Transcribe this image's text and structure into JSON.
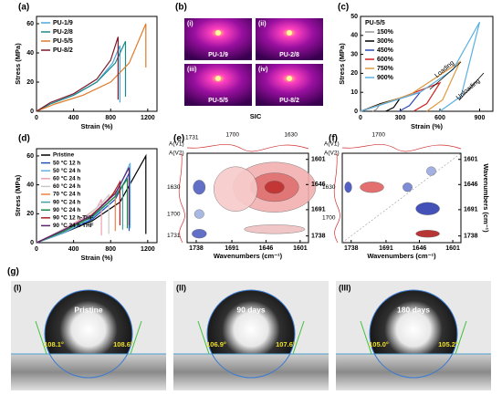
{
  "chart_data": [
    {
      "type": "line",
      "label": "(a)",
      "xlabel": "Strain (%)",
      "ylabel": "Stress (MPa)",
      "xlim": [
        0,
        1300
      ],
      "ylim": [
        0,
        65
      ],
      "xticks": [
        0,
        400,
        800,
        1200
      ],
      "yticks": [
        0,
        20,
        40,
        60
      ],
      "legend": "upper left",
      "series": [
        {
          "name": "PU-1/9",
          "color": "#4aa8e0",
          "x": [
            0,
            150,
            400,
            650,
            820,
            900,
            900
          ],
          "values": [
            0,
            5,
            11,
            20,
            33,
            45,
            6
          ]
        },
        {
          "name": "PU-2/8",
          "color": "#1a8a8a",
          "x": [
            0,
            150,
            400,
            650,
            850,
            960,
            960
          ],
          "values": [
            0,
            5,
            11,
            20,
            33,
            48,
            10
          ]
        },
        {
          "name": "PU-5/5",
          "color": "#e07a2a",
          "x": [
            0,
            200,
            500,
            800,
            1000,
            1180,
            1180
          ],
          "values": [
            0,
            5,
            11,
            20,
            33,
            60,
            30
          ]
        },
        {
          "name": "PU-8/2",
          "color": "#7a1a2a",
          "x": [
            0,
            150,
            400,
            650,
            800,
            880,
            880
          ],
          "values": [
            0,
            6,
            12,
            22,
            35,
            51,
            8
          ]
        }
      ]
    },
    {
      "type": "line",
      "label": "(c)",
      "xlabel": "Strain (%)",
      "ylabel": "Stress (MPa)",
      "xlim": [
        0,
        1000
      ],
      "ylim": [
        0,
        50
      ],
      "xticks": [
        0,
        300,
        600,
        900
      ],
      "yticks": [
        0,
        10,
        20,
        30,
        40,
        50
      ],
      "legend": "upper left",
      "legend_title": "PU-5/5",
      "annotations": [
        "Loading",
        "Unloading"
      ],
      "series": [
        {
          "name": "150%",
          "color": "#999999",
          "x": [
            0,
            75,
            150,
            120,
            90
          ],
          "values": [
            0,
            2,
            4,
            1,
            0
          ]
        },
        {
          "name": "300%",
          "color": "#000000",
          "x": [
            0,
            150,
            300,
            250,
            190
          ],
          "values": [
            0,
            4,
            7,
            2,
            0
          ]
        },
        {
          "name": "450%",
          "color": "#2a4ab0",
          "x": [
            0,
            220,
            450,
            370,
            290
          ],
          "values": [
            0,
            5,
            10,
            3,
            0
          ]
        },
        {
          "name": "600%",
          "color": "#d02020",
          "x": [
            0,
            300,
            600,
            500,
            400
          ],
          "values": [
            0,
            7,
            15,
            4,
            0
          ]
        },
        {
          "name": "750%",
          "color": "#e09a40",
          "x": [
            0,
            380,
            750,
            620,
            500
          ],
          "values": [
            0,
            9,
            26,
            6,
            0
          ]
        },
        {
          "name": "900%",
          "color": "#5ab0e0",
          "x": [
            0,
            450,
            700,
            900,
            760,
            600
          ],
          "values": [
            0,
            10,
            22,
            47,
            8,
            0
          ]
        }
      ]
    },
    {
      "type": "line",
      "label": "(d)",
      "xlabel": "Strain (%)",
      "ylabel": "Stress (MPa)",
      "xlim": [
        0,
        1300
      ],
      "ylim": [
        0,
        65
      ],
      "xticks": [
        0,
        400,
        800,
        1200
      ],
      "yticks": [
        0,
        20,
        40,
        60
      ],
      "legend": "upper left",
      "series": [
        {
          "name": "Pristine",
          "color": "#000000",
          "x": [
            0,
            300,
            600,
            900,
            1180,
            1180
          ],
          "values": [
            0,
            7,
            15,
            28,
            60,
            6
          ]
        },
        {
          "name": "50 °C 12 h",
          "color": "#2050c0",
          "x": [
            0,
            300,
            600,
            850,
            1000,
            1000
          ],
          "values": [
            0,
            7,
            16,
            30,
            48,
            8
          ]
        },
        {
          "name": "50 °C 24 h",
          "color": "#60b0e0",
          "x": [
            0,
            300,
            600,
            850,
            1010,
            1010
          ],
          "values": [
            0,
            7,
            17,
            32,
            55,
            10
          ]
        },
        {
          "name": "60 °C 24 h",
          "color": "#f0a0b0",
          "x": [
            0,
            250,
            500,
            650,
            700,
            700
          ],
          "values": [
            0,
            8,
            17,
            24,
            30,
            5
          ]
        },
        {
          "name": "60 °C 24 h",
          "color": "#c8c8c8",
          "x": [
            0,
            250,
            500,
            700,
            780,
            780
          ],
          "values": [
            0,
            8,
            16,
            27,
            33,
            6
          ]
        },
        {
          "name": "70 °C 24 h",
          "color": "#f08040",
          "x": [
            0,
            300,
            550,
            750,
            850,
            850
          ],
          "values": [
            0,
            8,
            17,
            28,
            36,
            8
          ]
        },
        {
          "name": "90 °C 24 h",
          "color": "#40a0a0",
          "x": [
            0,
            300,
            600,
            850,
            930,
            930
          ],
          "values": [
            0,
            8,
            18,
            32,
            40,
            9
          ]
        },
        {
          "name": "90 °C 24 h",
          "color": "#1a8a40",
          "x": [
            0,
            300,
            600,
            850,
            980,
            980
          ],
          "values": [
            0,
            8,
            18,
            32,
            44,
            10
          ]
        },
        {
          "name": "90 °C 12 h-THF",
          "color": "#b02020",
          "x": [
            0,
            300,
            600,
            820,
            900,
            900
          ],
          "values": [
            0,
            9,
            19,
            33,
            42,
            12
          ]
        },
        {
          "name": "90 °C 24 h-THF",
          "color": "#602070",
          "x": [
            0,
            300,
            600,
            850,
            1000,
            1000
          ],
          "values": [
            0,
            9,
            19,
            34,
            52,
            12
          ]
        }
      ]
    },
    {
      "type": "contour",
      "label": "(e)",
      "xlabel": "Wavenumbers (cm⁻¹)",
      "xlim": [
        1750,
        1590
      ],
      "ylim": [
        1750,
        1590
      ],
      "xticks": [
        1738,
        1691,
        1646,
        1601
      ],
      "yticks": [
        1738,
        1691,
        1646,
        1601
      ],
      "annotations": [
        "A(V1)",
        "A(V2)",
        "1731",
        "1700",
        "1630",
        "1630",
        "1700",
        "1731"
      ]
    },
    {
      "type": "contour",
      "label": "(f)",
      "xlabel": "Wavenumbers (cm⁻¹)",
      "ylabel": "Wavenumbers (cm⁻¹)",
      "xlim": [
        1750,
        1590
      ],
      "ylim": [
        1750,
        1590
      ],
      "xticks": [
        1738,
        1691,
        1646,
        1601
      ],
      "yticks": [
        1738,
        1691,
        1646,
        1601
      ],
      "annotations": [
        "A(V1)",
        "A(V2)",
        "1700",
        "1630",
        "1700"
      ]
    }
  ],
  "sic_panel": {
    "label": "(b)",
    "caption": "SIC",
    "images": [
      {
        "tag": "(i)",
        "name": "PU-1/9"
      },
      {
        "tag": "(ii)",
        "name": "PU-2/8"
      },
      {
        "tag": "(iii)",
        "name": "PU-5/5"
      },
      {
        "tag": "(iv)",
        "name": "PU-8/2"
      }
    ]
  },
  "contact_angle_panel": {
    "label": "(g)",
    "images": [
      {
        "tag": "(I)",
        "title": "Pristine",
        "left": "108.1°",
        "right": "108.6°"
      },
      {
        "tag": "(II)",
        "title": "90 days",
        "left": "106.9°",
        "right": "107.6°"
      },
      {
        "tag": "(III)",
        "title": "180 days",
        "left": "105.0°",
        "right": "105.2°"
      }
    ]
  }
}
